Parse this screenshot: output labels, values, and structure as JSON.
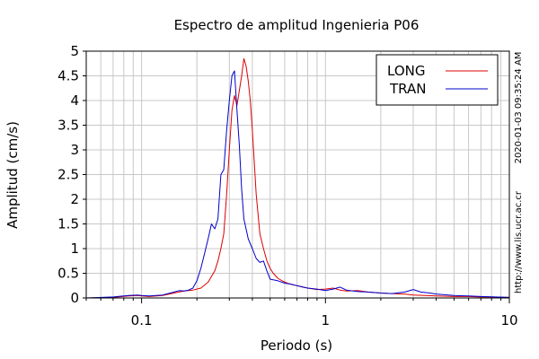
{
  "chart_data": {
    "type": "line",
    "title": "Espectro de amplitud Ingenieria P06",
    "xlabel": "Periodo (s)",
    "ylabel": "Amplitud (cm/s)",
    "xscale": "log",
    "xlim": [
      0.05,
      10
    ],
    "ylim": [
      0,
      5
    ],
    "xticks": [
      {
        "value": 0.1,
        "label": "0.1"
      },
      {
        "value": 1,
        "label": "1"
      },
      {
        "value": 10,
        "label": "10"
      }
    ],
    "yticks": [
      {
        "value": 0,
        "label": "0"
      },
      {
        "value": 0.5,
        "label": "0.5"
      },
      {
        "value": 1,
        "label": "1"
      },
      {
        "value": 1.5,
        "label": "1.5"
      },
      {
        "value": 2,
        "label": "2"
      },
      {
        "value": 2.5,
        "label": "2.5"
      },
      {
        "value": 3,
        "label": "3"
      },
      {
        "value": 3.5,
        "label": "3.5"
      },
      {
        "value": 4,
        "label": "4"
      },
      {
        "value": 4.5,
        "label": "4.5"
      },
      {
        "value": 5,
        "label": "5"
      }
    ],
    "grid": true,
    "legend_position": "top-right",
    "series": [
      {
        "name": "LONG",
        "color": "#dd0000",
        "x": [
          0.05,
          0.07,
          0.085,
          0.095,
          0.1,
          0.11,
          0.13,
          0.15,
          0.17,
          0.19,
          0.21,
          0.23,
          0.25,
          0.26,
          0.27,
          0.28,
          0.29,
          0.3,
          0.31,
          0.32,
          0.33,
          0.34,
          0.35,
          0.36,
          0.37,
          0.38,
          0.39,
          0.4,
          0.42,
          0.44,
          0.46,
          0.48,
          0.5,
          0.52,
          0.55,
          0.58,
          0.62,
          0.66,
          0.7,
          0.75,
          0.8,
          0.9,
          1.0,
          1.1,
          1.2,
          1.3,
          1.5,
          1.7,
          2.0,
          2.3,
          2.7,
          3.0,
          3.5,
          4.0,
          5.0,
          6.0,
          7.0,
          8.0,
          10.0
        ],
        "y": [
          0.0,
          0.01,
          0.04,
          0.05,
          0.04,
          0.03,
          0.05,
          0.1,
          0.14,
          0.16,
          0.2,
          0.32,
          0.55,
          0.75,
          1.0,
          1.3,
          2.1,
          3.0,
          3.8,
          4.1,
          3.9,
          4.2,
          4.5,
          4.85,
          4.7,
          4.4,
          4.0,
          3.4,
          2.1,
          1.3,
          1.0,
          0.75,
          0.6,
          0.5,
          0.4,
          0.35,
          0.3,
          0.27,
          0.25,
          0.22,
          0.2,
          0.17,
          0.18,
          0.2,
          0.16,
          0.14,
          0.15,
          0.12,
          0.1,
          0.09,
          0.08,
          0.06,
          0.05,
          0.04,
          0.03,
          0.03,
          0.02,
          0.02,
          0.01
        ]
      },
      {
        "name": "TRAN",
        "color": "#0000cc",
        "x": [
          0.05,
          0.07,
          0.085,
          0.095,
          0.1,
          0.11,
          0.13,
          0.15,
          0.16,
          0.17,
          0.18,
          0.19,
          0.2,
          0.21,
          0.22,
          0.23,
          0.24,
          0.25,
          0.26,
          0.27,
          0.28,
          0.29,
          0.3,
          0.31,
          0.32,
          0.33,
          0.34,
          0.35,
          0.36,
          0.37,
          0.38,
          0.4,
          0.42,
          0.44,
          0.46,
          0.48,
          0.5,
          0.55,
          0.6,
          0.65,
          0.7,
          0.8,
          0.9,
          1.0,
          1.1,
          1.2,
          1.3,
          1.5,
          1.7,
          2.0,
          2.3,
          2.7,
          3.0,
          3.3,
          3.7,
          4.0,
          5.0,
          6.0,
          7.0,
          10.0
        ],
        "y": [
          0.0,
          0.02,
          0.05,
          0.06,
          0.05,
          0.04,
          0.06,
          0.12,
          0.15,
          0.14,
          0.16,
          0.2,
          0.35,
          0.6,
          0.9,
          1.2,
          1.5,
          1.4,
          1.6,
          2.5,
          2.6,
          3.4,
          4.0,
          4.5,
          4.6,
          3.8,
          3.1,
          2.2,
          1.6,
          1.4,
          1.2,
          1.0,
          0.8,
          0.72,
          0.75,
          0.55,
          0.38,
          0.35,
          0.3,
          0.28,
          0.25,
          0.2,
          0.18,
          0.15,
          0.18,
          0.22,
          0.16,
          0.13,
          0.12,
          0.1,
          0.09,
          0.12,
          0.17,
          0.12,
          0.1,
          0.08,
          0.05,
          0.04,
          0.03,
          0.01
        ]
      }
    ]
  },
  "side_labels": {
    "timestamp": "2020-01-03 09:35:24 AM",
    "url": "http://www.lis.ucr.ac.cr"
  }
}
